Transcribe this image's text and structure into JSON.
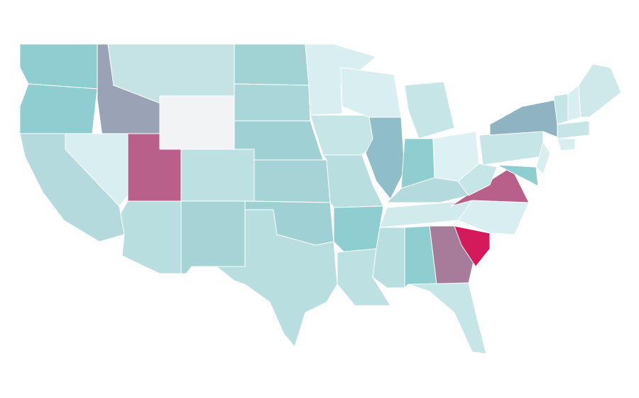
{
  "map": {
    "regions": [
      {
        "color": "#8ecdd0"
      },
      {
        "color": "#8ecdd0"
      },
      {
        "color": "#9aa3b5"
      },
      {
        "color": "#c5e3e5"
      },
      {
        "color": "#f2f3f5"
      },
      {
        "color": "#d9eef1"
      },
      {
        "color": "#b4dadd"
      },
      {
        "color": "#b86089"
      },
      {
        "color": "#bde0e2"
      },
      {
        "color": "#b8dee0"
      },
      {
        "color": "#a6d4d6"
      },
      {
        "color": "#a1d3d5"
      },
      {
        "color": "#a9d6d8"
      },
      {
        "color": "#9fd0d3"
      },
      {
        "color": "#a6d4d6"
      },
      {
        "color": "#9fd0d3"
      },
      {
        "color": "#b8dee0"
      },
      {
        "color": "#d9eef1"
      },
      {
        "color": "#c6e5e7"
      },
      {
        "color": "#b8dee0"
      },
      {
        "color": "#8ecdd0"
      },
      {
        "color": "#bde0e2"
      },
      {
        "color": "#d9eef1"
      },
      {
        "color": "#90bec8"
      },
      {
        "color": "#c6e5e7"
      },
      {
        "color": "#8ecdd0"
      },
      {
        "color": "#ddf1f3"
      },
      {
        "color": "#b4dadd"
      },
      {
        "color": "#d1eaec"
      },
      {
        "color": "#b8dee0"
      },
      {
        "color": "#8ecdd0"
      },
      {
        "color": "#a77b9a"
      },
      {
        "color": "#c6e5e7"
      },
      {
        "color": "#d41a5a"
      },
      {
        "color": "#d9eef1"
      },
      {
        "color": "#b86089"
      },
      {
        "color": "#c6e5e7"
      },
      {
        "color": "#c6e5e7"
      },
      {
        "color": "#8fb3c0"
      },
      {
        "color": "#8ecdd0"
      },
      {
        "color": "#d9eef1"
      },
      {
        "color": "#c6e5e7"
      },
      {
        "color": "#d9eef1"
      },
      {
        "color": "#cfe9eb"
      },
      {
        "color": "#c6e5e7"
      },
      {
        "color": "#d9eef1"
      }
    ]
  }
}
